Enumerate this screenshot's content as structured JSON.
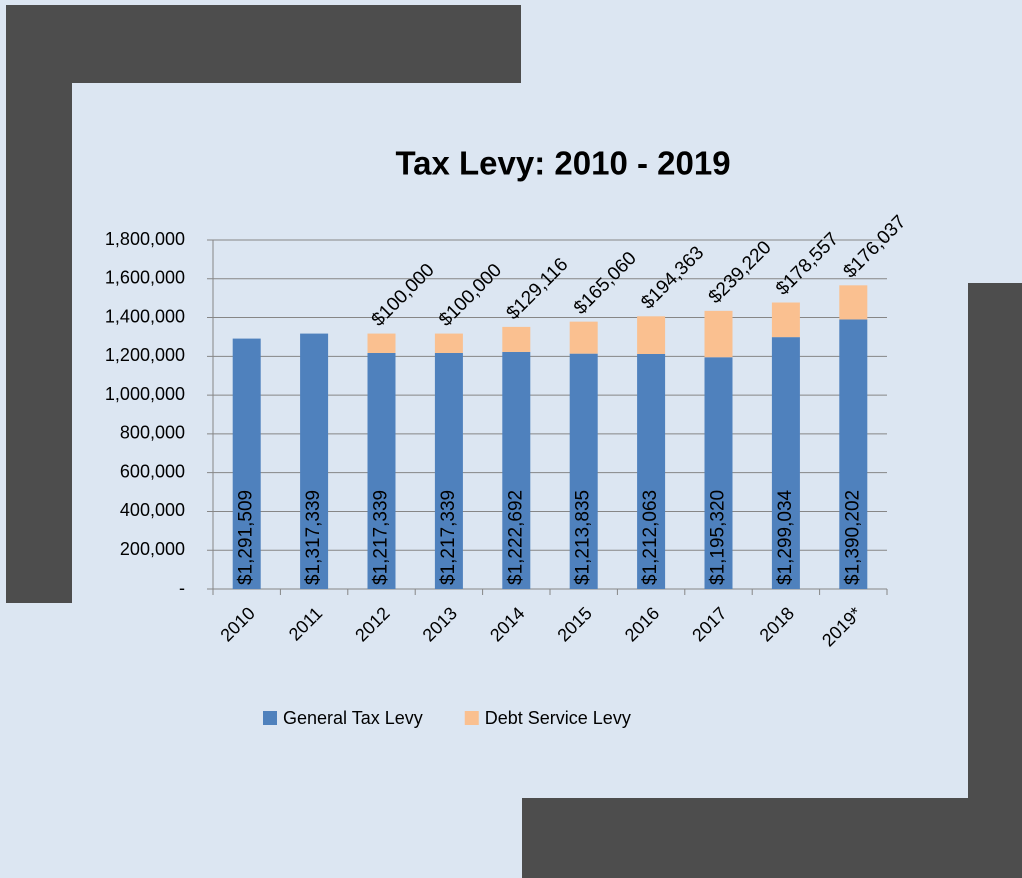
{
  "chart_data": {
    "type": "stacked-bar",
    "title": "Tax Levy: 2010 - 2019",
    "categories": [
      "2010",
      "2011",
      "2012",
      "2013",
      "2014",
      "2015",
      "2016",
      "2017",
      "2018",
      "2019*"
    ],
    "series": [
      {
        "name": "General Tax Levy",
        "color": "#4f81bd",
        "values": [
          1291509,
          1317339,
          1217339,
          1217339,
          1222692,
          1213835,
          1212063,
          1195320,
          1299034,
          1390202
        ],
        "value_labels": [
          "$1,291,509",
          "$1,317,339",
          "$1,217,339",
          "$1,217,339",
          "$1,222,692",
          "$1,213,835",
          "$1,212,063",
          "$1,195,320",
          "$1,299,034",
          "$1,390,202"
        ]
      },
      {
        "name": "Debt Service Levy",
        "color": "#fac090",
        "values": [
          null,
          null,
          100000,
          100000,
          129116,
          165060,
          194363,
          239220,
          178557,
          176037
        ],
        "value_labels": [
          null,
          null,
          "$100,000",
          "$100,000",
          "$129,116",
          "$165,060",
          "$194,363",
          "$239,220",
          "$178,557",
          "$176,037"
        ]
      }
    ],
    "ylim": [
      0,
      1800000
    ],
    "yticks": [
      {
        "value": 0,
        "label": "-"
      },
      {
        "value": 200000,
        "label": "200,000"
      },
      {
        "value": 400000,
        "label": "400,000"
      },
      {
        "value": 600000,
        "label": "600,000"
      },
      {
        "value": 800000,
        "label": "800,000"
      },
      {
        "value": 1000000,
        "label": "1,000,000"
      },
      {
        "value": 1200000,
        "label": "1,200,000"
      },
      {
        "value": 1400000,
        "label": "1,400,000"
      },
      {
        "value": 1600000,
        "label": "1,600,000"
      },
      {
        "value": 1800000,
        "label": "1,800,000"
      }
    ],
    "grid": true,
    "legend": "bottom"
  }
}
